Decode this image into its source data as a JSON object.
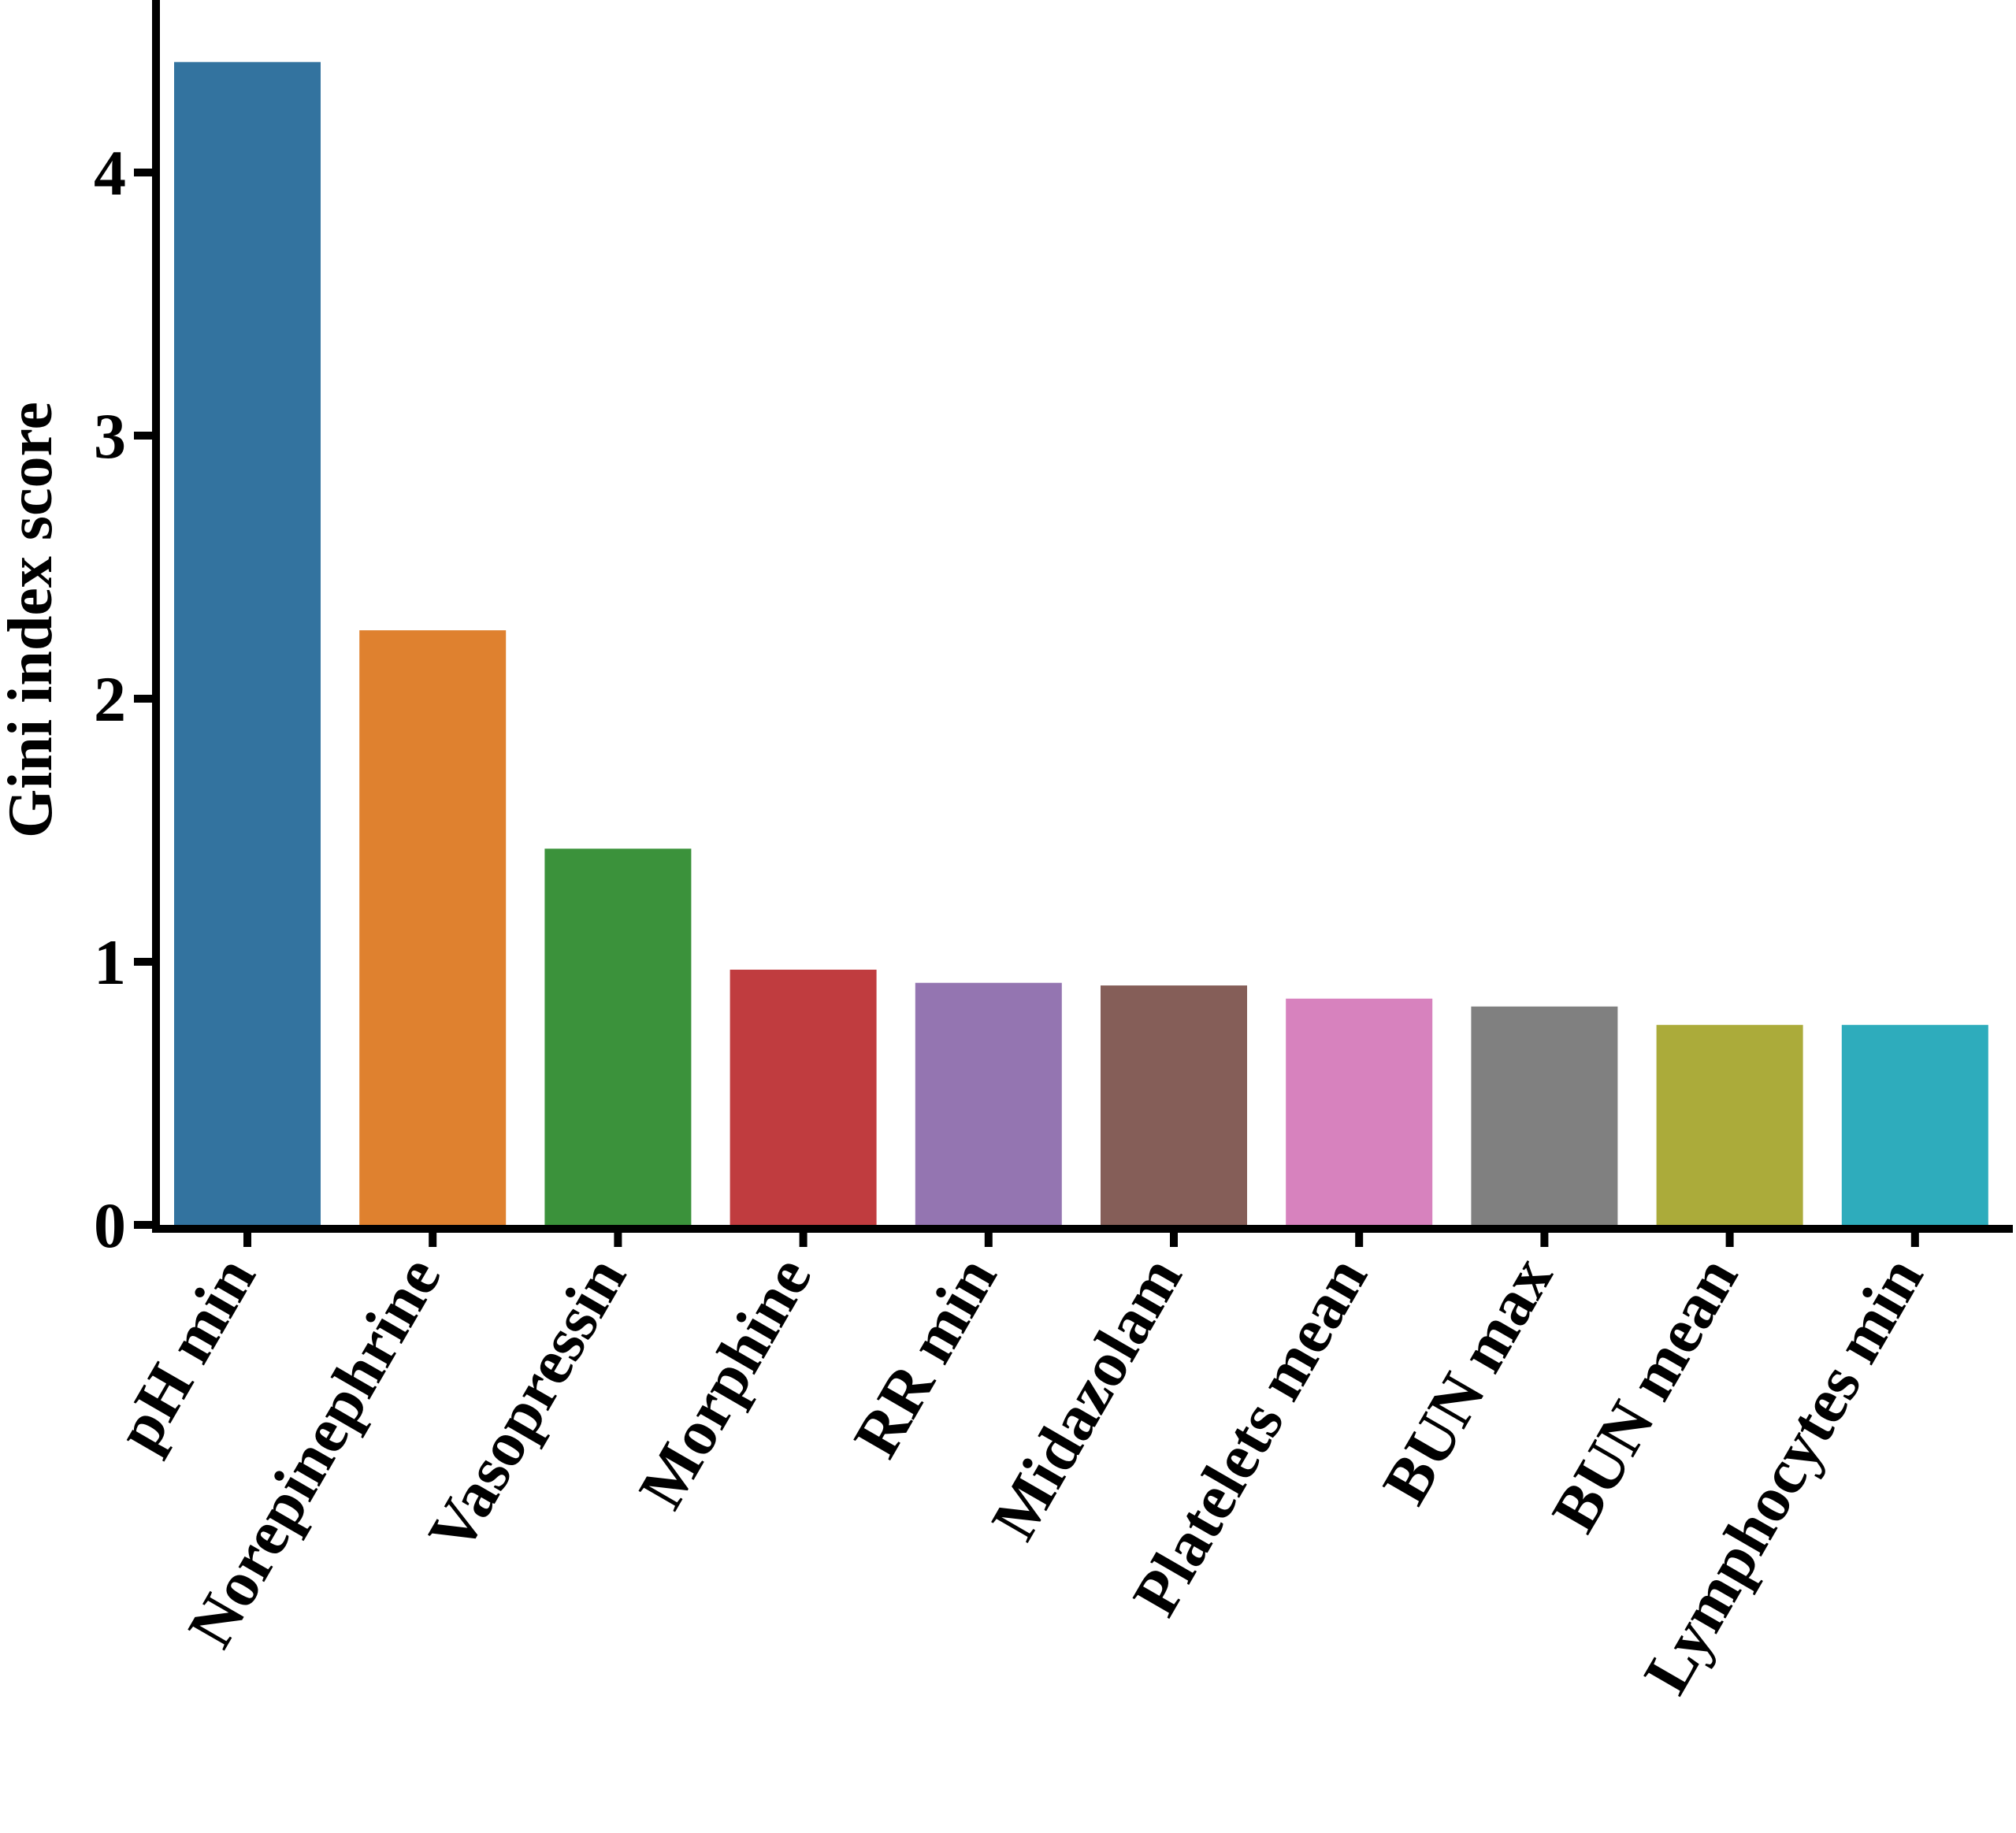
{
  "chart_data": {
    "type": "bar",
    "categories": [
      "pH min",
      "Norepinephrine",
      "Vasopressin",
      "Morphine",
      "RR min",
      "Midazolam",
      "Platelets mean",
      "BUN max",
      "BUN mean",
      "Lymphocytes min"
    ],
    "values": [
      4.42,
      2.26,
      1.43,
      0.97,
      0.92,
      0.91,
      0.86,
      0.83,
      0.76,
      0.76
    ],
    "colors": [
      "#33739f",
      "#df812f",
      "#3b923b",
      "#c03c3f",
      "#9475b1",
      "#855e58",
      "#d782be",
      "#808080",
      "#abab3a",
      "#2eacbc"
    ],
    "title": "",
    "xlabel": "",
    "ylabel": "Gini index score",
    "ylim": [
      0,
      4.65
    ],
    "yticks": [
      "0",
      "1",
      "2",
      "3",
      "4"
    ],
    "grid": false,
    "legend": "none"
  }
}
